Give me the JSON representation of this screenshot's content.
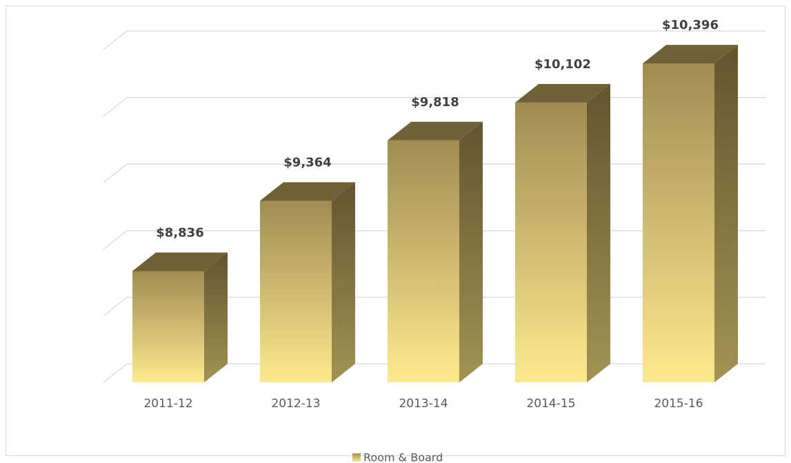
{
  "chart_data": {
    "type": "bar3d",
    "categories": [
      "2011-12",
      "2012-13",
      "2013-14",
      "2014-15",
      "2015-16"
    ],
    "series": [
      {
        "name": "Room & Board",
        "color": "#d9c277",
        "values": [
          8836,
          9364,
          9818,
          10102,
          10396
        ],
        "value_labels": [
          "$8,836",
          "$9,364",
          "$9,818",
          "$10,102",
          "$10,396"
        ]
      }
    ],
    "ylim": [
      8000,
      10500
    ],
    "yticks": [
      8000,
      8500,
      9000,
      9500,
      10000,
      10500
    ],
    "grid": true,
    "legend": "bottom"
  }
}
